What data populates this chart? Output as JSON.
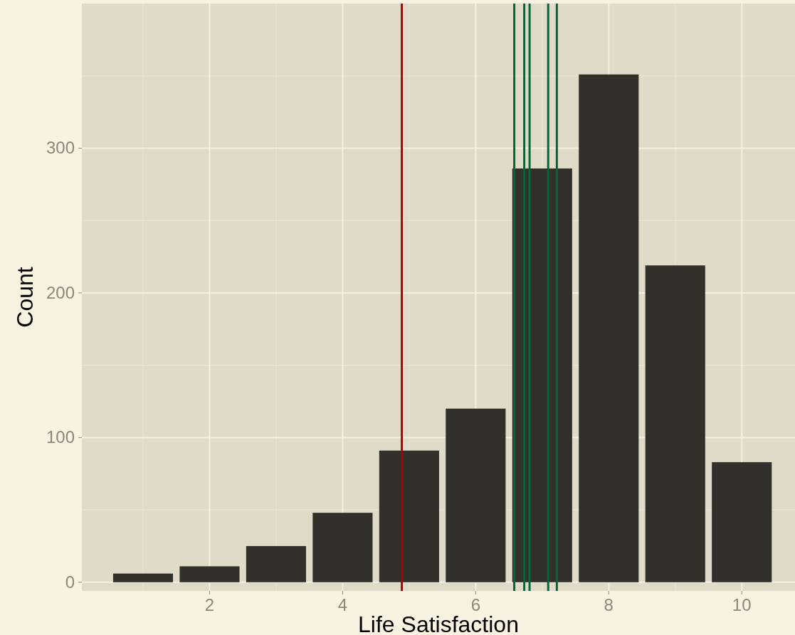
{
  "chart_data": {
    "type": "bar",
    "xlabel": "Life Satisfaction",
    "ylabel": "Count",
    "x": [
      1,
      2,
      3,
      4,
      5,
      6,
      7,
      8,
      9,
      10
    ],
    "values": [
      6,
      11,
      25,
      48,
      91,
      120,
      286,
      351,
      219,
      83
    ],
    "color": "#32302b",
    "xlim": [
      0.08,
      10.8
    ],
    "ylim": [
      -6,
      400
    ],
    "xticks": [
      2,
      4,
      6,
      8,
      10
    ],
    "yticks": [
      0,
      100,
      200,
      300
    ],
    "grid": true,
    "ref_lines": [
      {
        "axis": "x",
        "value": 4.89,
        "color": "#b00000"
      },
      {
        "axis": "x",
        "value": 6.58,
        "color": "#00693a"
      },
      {
        "axis": "x",
        "value": 6.73,
        "color": "#00693a"
      },
      {
        "axis": "x",
        "value": 6.81,
        "color": "#00693a"
      },
      {
        "axis": "x",
        "value": 7.09,
        "color": "#00693a"
      },
      {
        "axis": "x",
        "value": 7.22,
        "color": "#00693a"
      }
    ]
  }
}
